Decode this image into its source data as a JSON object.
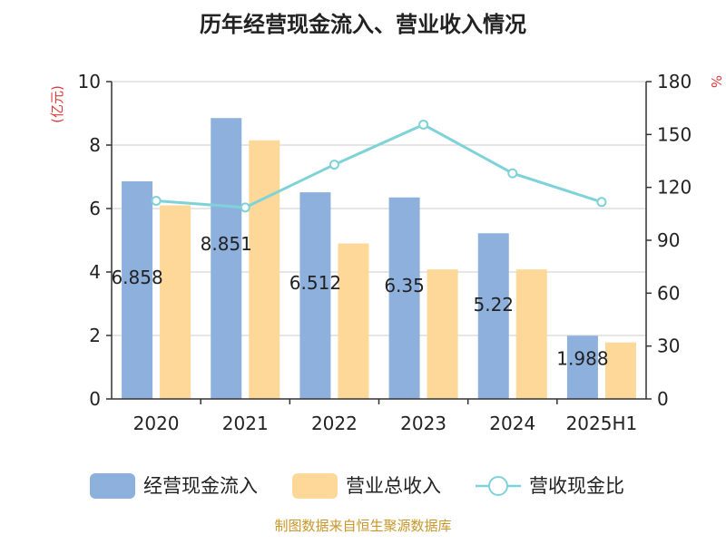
{
  "title": "历年经营现金流入、营业收入情况",
  "left_unit": "(亿元)",
  "right_unit": "%",
  "source": "制图数据来自恒生聚源数据库",
  "colors": {
    "cash_inflow": "#8eb0dd",
    "revenue": "#fdd898",
    "ratio_line": "#7fd3d8",
    "axis": "#333333",
    "grid": "#cccccc"
  },
  "chart_data": {
    "type": "bar",
    "categories": [
      "2020",
      "2021",
      "2022",
      "2023",
      "2024",
      "2025H1"
    ],
    "series": [
      {
        "name": "经营现金流入",
        "type": "bar",
        "axis": "left",
        "values": [
          6.858,
          8.851,
          6.512,
          6.35,
          5.22,
          1.988
        ],
        "labels": [
          "6.858",
          "8.851",
          "6.512",
          "6.35",
          "5.22",
          "1.988"
        ]
      },
      {
        "name": "营业总收入",
        "type": "bar",
        "axis": "left",
        "values": [
          6.1,
          8.15,
          4.9,
          4.08,
          4.08,
          1.78
        ]
      },
      {
        "name": "营收现金比",
        "type": "line",
        "axis": "right",
        "values": [
          112.4,
          108.6,
          132.9,
          155.6,
          128.0,
          111.7
        ]
      }
    ],
    "yleft": {
      "lim": [
        0,
        10
      ],
      "ticks": [
        "0",
        "2",
        "4",
        "6",
        "8",
        "10"
      ]
    },
    "yright": {
      "lim": [
        0,
        180
      ],
      "ticks": [
        "0",
        "30",
        "60",
        "90",
        "120",
        "150",
        "180"
      ]
    },
    "grid": true,
    "legend_position": "bottom"
  }
}
